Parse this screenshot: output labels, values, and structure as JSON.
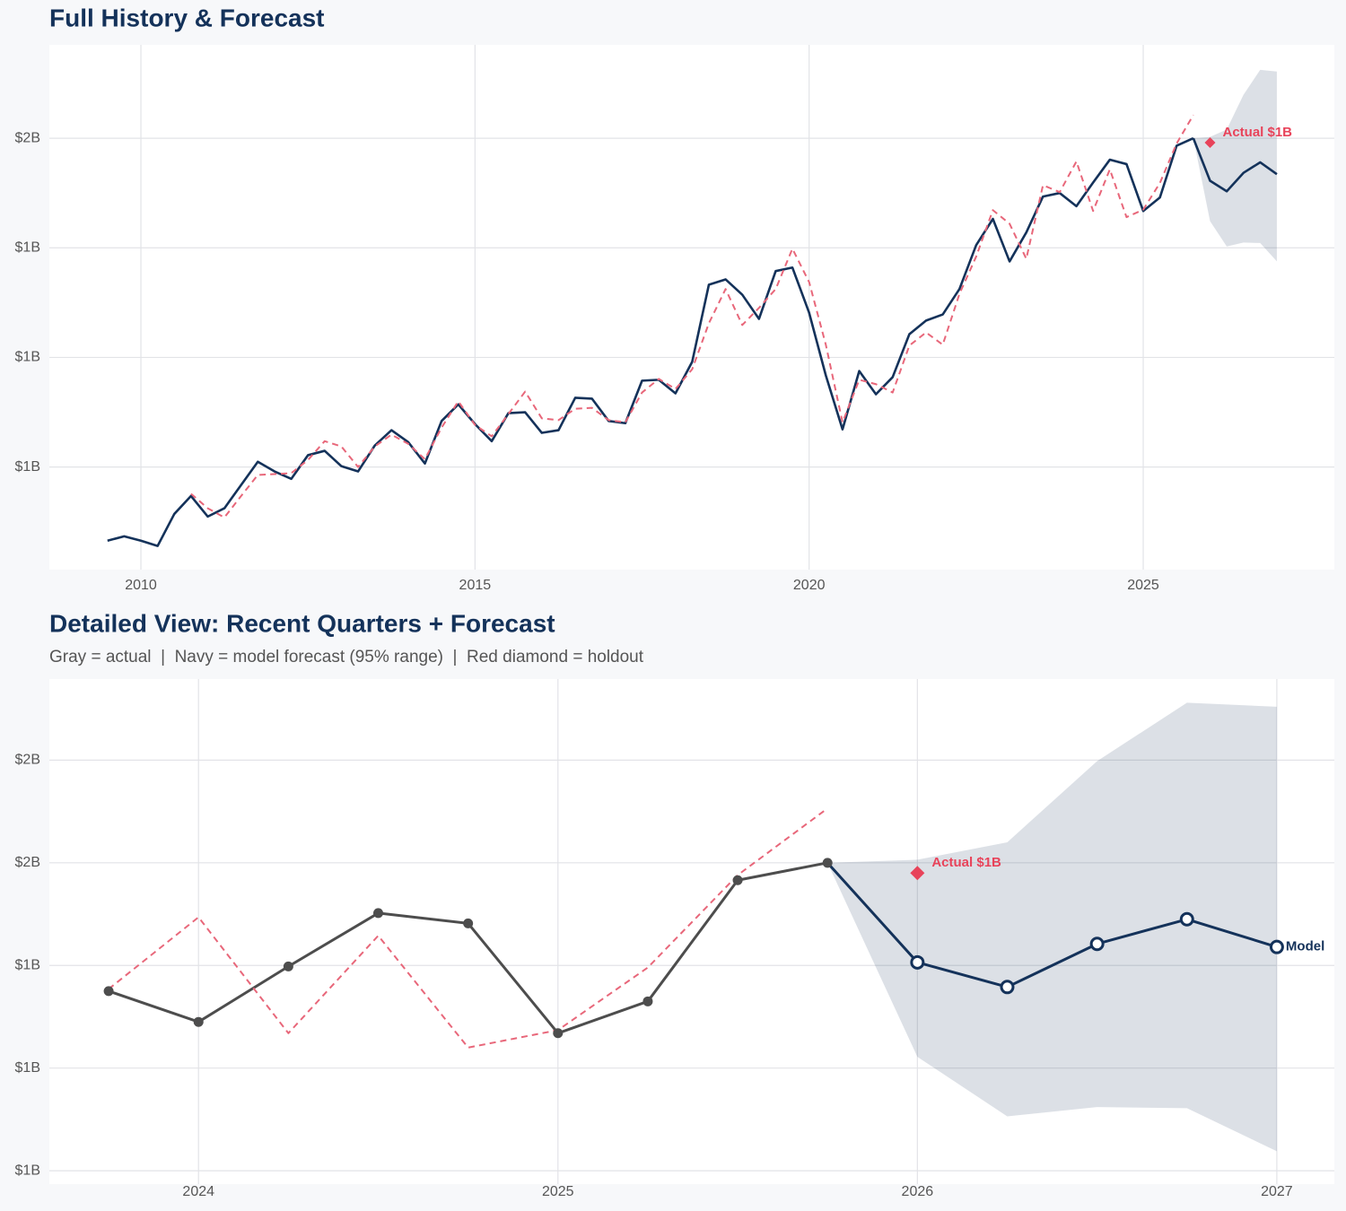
{
  "chart_data": [
    {
      "type": "line",
      "title": "Full History & Forecast",
      "xlim": [
        2008.63,
        2027.86
      ],
      "xticks": [
        2010,
        2015,
        2020,
        2025
      ],
      "ylim": [
        0.516,
        1.713
      ],
      "yticks": [
        {
          "value": 1.5,
          "label": "$2B"
        },
        {
          "value": 1.25,
          "label": "$1B"
        },
        {
          "value": 1.0,
          "label": "$1B"
        },
        {
          "value": 0.75,
          "label": "$1B"
        }
      ],
      "grid": true,
      "series": [
        {
          "color": "#14325a",
          "width": 2.6,
          "x": [
            2009.5,
            2009.75,
            2010,
            2010.25,
            2010.5,
            2010.75,
            2011,
            2011.25,
            2011.5,
            2011.75,
            2012,
            2012.25,
            2012.5,
            2012.75,
            2013,
            2013.25,
            2013.5,
            2013.75,
            2014,
            2014.25,
            2014.5,
            2014.75,
            2015,
            2015.25,
            2015.5,
            2015.75,
            2016,
            2016.25,
            2016.5,
            2016.75,
            2017,
            2017.25,
            2017.5,
            2017.75,
            2018,
            2018.25,
            2018.5,
            2018.75,
            2019,
            2019.25,
            2019.5,
            2019.75,
            2020,
            2020.25,
            2020.5,
            2020.75,
            2021,
            2021.25,
            2021.5,
            2021.75,
            2022,
            2022.25,
            2022.5,
            2022.75,
            2023,
            2023.25,
            2023.5,
            2023.75,
            2024,
            2024.25,
            2024.5,
            2024.75,
            2025,
            2025.25,
            2025.5,
            2025.75
          ],
          "values": [
            0.582,
            0.592,
            0.582,
            0.57,
            0.643,
            0.684,
            0.637,
            0.656,
            0.709,
            0.762,
            0.74,
            0.723,
            0.777,
            0.787,
            0.752,
            0.74,
            0.799,
            0.834,
            0.807,
            0.758,
            0.855,
            0.893,
            0.848,
            0.809,
            0.873,
            0.875,
            0.828,
            0.834,
            0.908,
            0.906,
            0.855,
            0.85,
            0.947,
            0.949,
            0.918,
            0.99,
            1.166,
            1.178,
            1.143,
            1.088,
            1.197,
            1.205,
            1.102,
            0.959,
            0.836,
            0.969,
            0.916,
            0.955,
            1.053,
            1.084,
            1.098,
            1.156,
            1.256,
            1.316,
            1.219,
            1.285,
            1.367,
            1.375,
            1.345,
            1.399,
            1.451,
            1.441,
            1.334,
            1.365,
            1.483,
            1.5
          ]
        },
        {
          "color": "#e8677a",
          "width": 2,
          "dash": true,
          "x": [
            2010.75,
            2011,
            2011.25,
            2011.5,
            2011.75,
            2012,
            2012.25,
            2012.5,
            2012.75,
            2013,
            2013.25,
            2013.5,
            2013.75,
            2014,
            2014.25,
            2014.5,
            2014.75,
            2015,
            2015.25,
            2015.5,
            2015.75,
            2016,
            2016.25,
            2016.5,
            2016.75,
            2017,
            2017.25,
            2017.5,
            2017.75,
            2018,
            2018.25,
            2018.5,
            2018.75,
            2019,
            2019.25,
            2019.5,
            2019.75,
            2020,
            2020.25,
            2020.5,
            2020.75,
            2021,
            2021.25,
            2021.5,
            2021.75,
            2022,
            2022.25,
            2022.5,
            2022.75,
            2023,
            2023.25,
            2023.5,
            2023.75,
            2024,
            2024.25,
            2024.5,
            2024.75,
            2025,
            2025.25,
            2025.5,
            2025.75
          ],
          "values": [
            0.689,
            0.656,
            0.635,
            0.684,
            0.732,
            0.734,
            0.736,
            0.766,
            0.809,
            0.797,
            0.75,
            0.797,
            0.824,
            0.803,
            0.768,
            0.84,
            0.9,
            0.846,
            0.82,
            0.871,
            0.922,
            0.861,
            0.857,
            0.883,
            0.885,
            0.857,
            0.852,
            0.92,
            0.951,
            0.928,
            0.973,
            1.078,
            1.156,
            1.074,
            1.113,
            1.156,
            1.248,
            1.172,
            1.029,
            0.852,
            0.949,
            0.939,
            0.92,
            1.027,
            1.057,
            1.029,
            1.145,
            1.23,
            1.336,
            1.305,
            1.225,
            1.393,
            1.377,
            1.447,
            1.334,
            1.429,
            1.32,
            1.337,
            1.398,
            1.488,
            1.553
          ]
        },
        {
          "color": "#14325a",
          "width": 2.6,
          "connect": 0,
          "band_color": "#14325a",
          "x": [
            2026,
            2026.25,
            2026.5,
            2026.75,
            2027
          ],
          "values": [
            1.403,
            1.379,
            1.421,
            1.445,
            1.418
          ],
          "lower": [
            1.311,
            1.253,
            1.262,
            1.261,
            1.219
          ],
          "upper": [
            1.503,
            1.52,
            1.599,
            1.656,
            1.652
          ]
        }
      ],
      "annotations": [
        {
          "x": 2026,
          "value": 1.49,
          "label": "Actual $1B",
          "color": "#e8435a",
          "marker": "diamond"
        }
      ]
    },
    {
      "type": "line",
      "title": "Detailed View: Recent Quarters + Forecast",
      "subtitle": "Gray = actual  |  Navy = model forecast (95% range)  |  Red diamond = holdout",
      "xlim": [
        2023.585,
        2027.16
      ],
      "xticks": [
        2024,
        2025,
        2026,
        2027
      ],
      "ylim": [
        1.187,
        1.679
      ],
      "yticks": [
        {
          "value": 1.6,
          "label": "$2B"
        },
        {
          "value": 1.5,
          "label": "$2B"
        },
        {
          "value": 1.4,
          "label": "$1B"
        },
        {
          "value": 1.3,
          "label": "$1B"
        },
        {
          "value": 1.2,
          "label": "$1B"
        }
      ],
      "grid": true,
      "series": [
        {
          "color": "#4d4d4d",
          "width": 3,
          "marker": "filled",
          "x": [
            2023.75,
            2024,
            2024.25,
            2024.5,
            2024.75,
            2025,
            2025.25,
            2025.5,
            2025.75
          ],
          "values": [
            1.375,
            1.345,
            1.399,
            1.451,
            1.441,
            1.334,
            1.365,
            1.483,
            1.5
          ]
        },
        {
          "color": "#e8677a",
          "width": 2,
          "dash": true,
          "x": [
            2023.75,
            2024,
            2024.25,
            2024.5,
            2024.75,
            2025,
            2025.25,
            2025.5,
            2025.75
          ],
          "values": [
            1.377,
            1.447,
            1.334,
            1.429,
            1.32,
            1.337,
            1.398,
            1.488,
            1.553
          ]
        },
        {
          "color": "#14325a",
          "width": 3,
          "marker": "open",
          "connect": 0,
          "band_color": "#14325a",
          "label": "Model",
          "x": [
            2026,
            2026.25,
            2026.5,
            2026.75,
            2027
          ],
          "values": [
            1.403,
            1.379,
            1.421,
            1.445,
            1.418
          ],
          "lower": [
            1.311,
            1.253,
            1.262,
            1.261,
            1.219
          ],
          "upper": [
            1.503,
            1.52,
            1.599,
            1.656,
            1.652
          ]
        }
      ],
      "annotations": [
        {
          "x": 2026,
          "value": 1.49,
          "label": "Actual $1B",
          "color": "#e8435a",
          "marker": "diamond"
        }
      ]
    }
  ]
}
